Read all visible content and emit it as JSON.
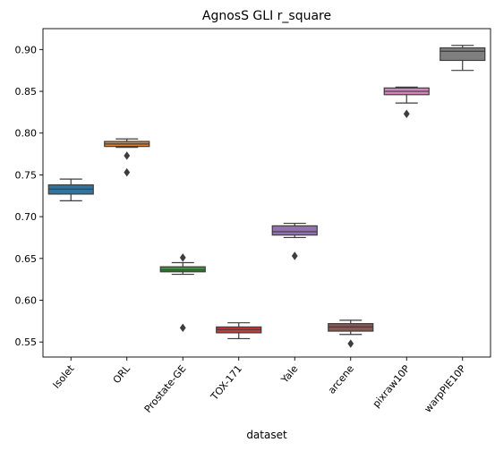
{
  "chart_data": {
    "type": "box",
    "title": "AgnosS GLI r_square",
    "xlabel": "dataset",
    "ylabel": "",
    "ylim": [
      0.532,
      0.925
    ],
    "yticks": [
      0.55,
      0.6,
      0.65,
      0.7,
      0.75,
      0.8,
      0.85,
      0.9
    ],
    "ytick_labels": [
      "0.55",
      "0.60",
      "0.65",
      "0.70",
      "0.75",
      "0.80",
      "0.85",
      "0.90"
    ],
    "grid": false,
    "legend": "none",
    "categories": [
      "Isolet",
      "ORL",
      "Prostate-GE",
      "TOX-171",
      "Yale",
      "arcene",
      "pixraw10P",
      "warpPIE10P"
    ],
    "boxes": [
      {
        "category": "Isolet",
        "color": "#3274a1",
        "whisker_low": 0.719,
        "q1": 0.727,
        "median": 0.733,
        "q3": 0.738,
        "whisker_high": 0.745,
        "outliers": []
      },
      {
        "category": "ORL",
        "color": "#e1812c",
        "whisker_low": 0.783,
        "q1": 0.784,
        "median": 0.787,
        "q3": 0.79,
        "whisker_high": 0.793,
        "outliers": [
          0.773,
          0.753
        ]
      },
      {
        "category": "Prostate-GE",
        "color": "#3a923a",
        "whisker_low": 0.631,
        "q1": 0.634,
        "median": 0.636,
        "q3": 0.64,
        "whisker_high": 0.645,
        "outliers": [
          0.651,
          0.567
        ]
      },
      {
        "category": "TOX-171",
        "color": "#c03d3e",
        "whisker_low": 0.554,
        "q1": 0.561,
        "median": 0.565,
        "q3": 0.568,
        "whisker_high": 0.573,
        "outliers": []
      },
      {
        "category": "Yale",
        "color": "#9372b2",
        "whisker_low": 0.675,
        "q1": 0.678,
        "median": 0.682,
        "q3": 0.689,
        "whisker_high": 0.692,
        "outliers": [
          0.653
        ]
      },
      {
        "category": "arcene",
        "color": "#845b53",
        "whisker_low": 0.559,
        "q1": 0.563,
        "median": 0.568,
        "q3": 0.572,
        "whisker_high": 0.576,
        "outliers": [
          0.548
        ]
      },
      {
        "category": "pixraw10P",
        "color": "#d684bd",
        "whisker_low": 0.836,
        "q1": 0.846,
        "median": 0.85,
        "q3": 0.854,
        "whisker_high": 0.855,
        "outliers": [
          0.823
        ]
      },
      {
        "category": "warpPIE10P",
        "color": "#7f7f7f",
        "whisker_low": 0.875,
        "q1": 0.887,
        "median": 0.898,
        "q3": 0.902,
        "whisker_high": 0.905,
        "outliers": []
      }
    ]
  }
}
